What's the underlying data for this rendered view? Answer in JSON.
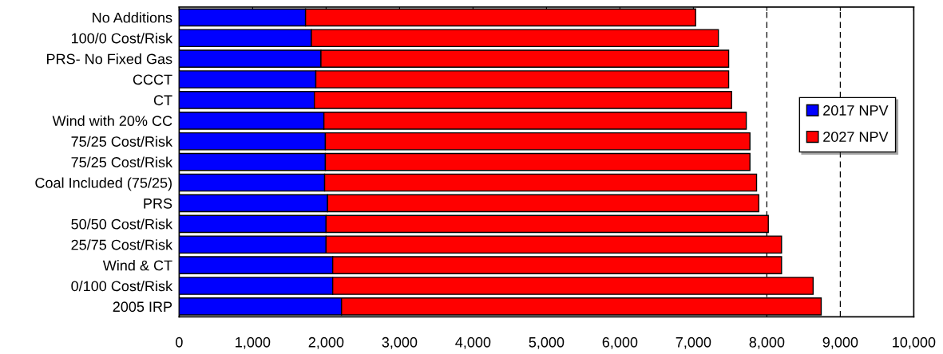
{
  "chart_data": {
    "type": "bar",
    "orientation": "horizontal",
    "stacked": true,
    "categories": [
      "No Additions",
      "100/0 Cost/Risk",
      "PRS- No Fixed Gas",
      "CCCT",
      "CT",
      "Wind with 20% CC",
      "75/25 Cost/Risk",
      "75/25 Cost/Risk",
      "Coal Included (75/25)",
      "PRS",
      "50/50 Cost/Risk",
      "25/75 Cost/Risk",
      "Wind & CT",
      "0/100 Cost/Risk",
      "2005 IRP"
    ],
    "series": [
      {
        "name": "2017 NPV",
        "color": "#0000ff",
        "values": [
          1720,
          1800,
          1930,
          1860,
          1840,
          1970,
          1990,
          1990,
          1980,
          2020,
          2000,
          2000,
          2090,
          2090,
          2210
        ]
      },
      {
        "name": "2027 NPV",
        "color": "#ff0000",
        "values": [
          5310,
          5540,
          5550,
          5620,
          5680,
          5750,
          5780,
          5780,
          5880,
          5870,
          6020,
          6200,
          6110,
          6540,
          6530
        ]
      }
    ],
    "xlim": [
      0,
      10000
    ],
    "xticks": [
      {
        "value": 0,
        "label": "0"
      },
      {
        "value": 1000,
        "label": "1,000"
      },
      {
        "value": 2000,
        "label": "2,000"
      },
      {
        "value": 3000,
        "label": "3,000"
      },
      {
        "value": 4000,
        "label": "4,000"
      },
      {
        "value": 5000,
        "label": "5,000"
      },
      {
        "value": 6000,
        "label": "6,000"
      },
      {
        "value": 7000,
        "label": "7,000"
      },
      {
        "value": 8000,
        "label": "8,000"
      },
      {
        "value": 9000,
        "label": "9,000"
      },
      {
        "value": 10000,
        "label": "10,000"
      }
    ],
    "ref_lines": [
      {
        "axis": "x",
        "value": 8000,
        "label": null,
        "color": "#000000",
        "line_style": "dashed"
      },
      {
        "axis": "x",
        "value": 9000,
        "label": null,
        "color": "#000000",
        "line_style": "dashed"
      }
    ],
    "grid": false,
    "legend": "right"
  }
}
